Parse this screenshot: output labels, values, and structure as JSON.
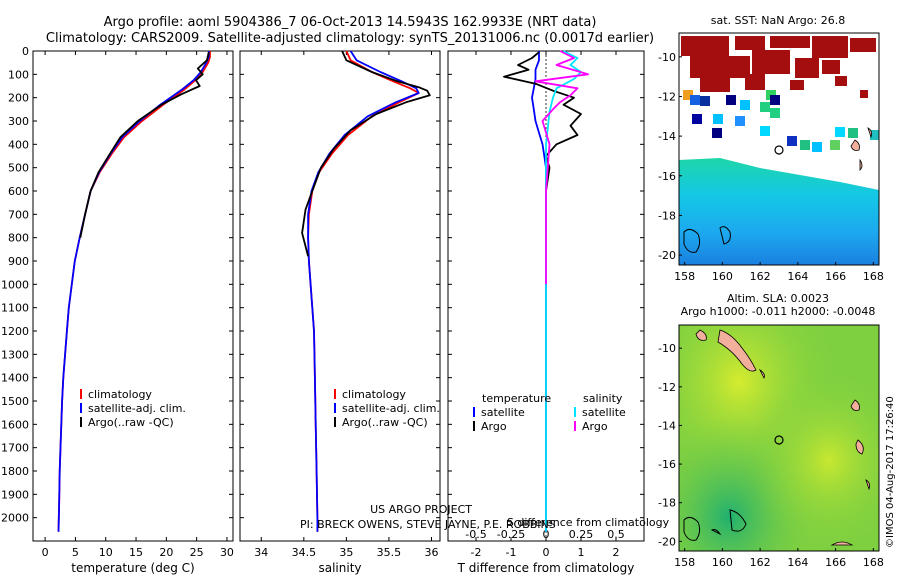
{
  "header": {
    "line1": "Argo profile: aoml 5904386_7 06-Oct-2013 14.5943S 162.9933E (NRT data)",
    "line2": "Climatology: CARS2009. Satellite-adjusted climatology: synTS_20131006.nc (0.0017d earlier)"
  },
  "credits": {
    "project": "US ARGO PROJECT",
    "pi": "PI: BRECK OWENS, STEVE JAYNE, P.E. ROBBINS",
    "stamp": "©IMOS 04-Aug-2017 17:26:40"
  },
  "colors": {
    "climatology": "#ff0000",
    "satellite": "#0000ff",
    "argo": "#000000",
    "argo_salinity": "#ff00ff",
    "satellite_salinity": "#00e5ff",
    "grid": "#000000"
  },
  "chart_data": [
    {
      "type": "line",
      "id": "temperature",
      "xlabel": "temperature (deg C)",
      "ylabel": "",
      "xlim": [
        -2,
        31
      ],
      "ylim": [
        2100,
        0
      ],
      "xticks": [
        "0",
        "5",
        "10",
        "15",
        "20",
        "25",
        "30"
      ],
      "xtick_values": [
        0,
        5,
        10,
        15,
        20,
        25,
        30
      ],
      "yticks": [
        "0",
        "100",
        "200",
        "300",
        "400",
        "500",
        "600",
        "700",
        "800",
        "900",
        "1000",
        "1100",
        "1200",
        "1300",
        "1400",
        "1500",
        "1600",
        "1700",
        "1800",
        "1900",
        "2000"
      ],
      "ytick_values": [
        0,
        100,
        200,
        300,
        400,
        500,
        600,
        700,
        800,
        900,
        1000,
        1100,
        1200,
        1300,
        1400,
        1500,
        1600,
        1700,
        1800,
        1900,
        2000
      ],
      "legend": [
        "climatology",
        "satellite-adj. clim.",
        "Argo(..raw -QC)"
      ],
      "series": [
        {
          "name": "climatology",
          "color": "#ff0000",
          "x": [
            27.2,
            27.2,
            26.9,
            26.0,
            24.8,
            23.0,
            19.5,
            16.0,
            13.0,
            11.0,
            9.0,
            7.5,
            6.6,
            5.7,
            4.9,
            4.4,
            3.9,
            3.6,
            3.3,
            3.0,
            2.8,
            2.6,
            2.4,
            2.3,
            2.2
          ],
          "y": [
            0,
            25,
            50,
            90,
            125,
            165,
            230,
            300,
            370,
            440,
            520,
            600,
            700,
            800,
            900,
            1000,
            1100,
            1200,
            1300,
            1400,
            1500,
            1650,
            1800,
            1950,
            2060
          ]
        },
        {
          "name": "satellite-adj. clim.",
          "color": "#0000ff",
          "x": [
            27.0,
            27.0,
            26.6,
            25.7,
            24.5,
            22.6,
            19.0,
            15.6,
            12.7,
            10.8,
            8.9,
            7.5,
            6.6,
            5.7,
            4.9,
            4.4,
            3.9,
            3.6,
            3.3,
            3.0,
            2.8,
            2.6,
            2.4,
            2.3,
            2.2
          ],
          "y": [
            0,
            25,
            50,
            90,
            125,
            165,
            230,
            300,
            370,
            440,
            520,
            600,
            700,
            800,
            900,
            1000,
            1100,
            1200,
            1300,
            1400,
            1500,
            1650,
            1800,
            1950,
            2060
          ]
        },
        {
          "name": "Argo(..raw -QC)",
          "color": "#000000",
          "x": [
            27.0,
            26.7,
            25.2,
            26.0,
            24.9,
            25.5,
            22.5,
            19.2,
            15.3,
            12.4,
            10.7,
            8.8,
            7.5,
            6.6,
            5.8
          ],
          "y": [
            5,
            40,
            75,
            100,
            125,
            150,
            185,
            230,
            300,
            370,
            440,
            520,
            600,
            700,
            800
          ]
        }
      ]
    },
    {
      "type": "line",
      "id": "salinity",
      "xlabel": "salinity",
      "ylabel": "",
      "xlim": [
        33.75,
        36.1
      ],
      "ylim": [
        2100,
        0
      ],
      "xticks": [
        "34",
        "34.5",
        "35",
        "35.5",
        "36"
      ],
      "xtick_values": [
        34,
        34.5,
        35,
        35.5,
        36
      ],
      "legend": [
        "climatology",
        "satellite-adj. clim.",
        "Argo(..raw -QC)"
      ],
      "series": [
        {
          "name": "climatology",
          "color": "#ff0000",
          "x": [
            35.0,
            35.05,
            35.3,
            35.55,
            35.75,
            35.85,
            35.62,
            35.3,
            35.02,
            34.83,
            34.68,
            34.6,
            34.56,
            34.55,
            34.56,
            34.58,
            34.6,
            34.62,
            34.63,
            34.64,
            34.65,
            34.66,
            34.66
          ],
          "y": [
            0,
            40,
            90,
            130,
            160,
            180,
            220,
            280,
            360,
            440,
            520,
            600,
            700,
            800,
            900,
            1000,
            1100,
            1200,
            1400,
            1600,
            1800,
            2000,
            2060
          ]
        },
        {
          "name": "satellite-adj. clim.",
          "color": "#0000ff",
          "x": [
            35.05,
            35.12,
            35.4,
            35.65,
            35.82,
            35.85,
            35.58,
            35.25,
            34.98,
            34.8,
            34.67,
            34.59,
            34.55,
            34.55,
            34.56,
            34.58,
            34.6,
            34.62,
            34.63,
            34.64,
            34.65,
            34.66,
            34.66
          ],
          "y": [
            0,
            40,
            90,
            130,
            160,
            180,
            220,
            280,
            360,
            440,
            520,
            600,
            700,
            800,
            900,
            1000,
            1100,
            1200,
            1400,
            1600,
            1800,
            2000,
            2060
          ]
        },
        {
          "name": "Argo(..raw -QC)",
          "color": "#000000",
          "x": [
            34.95,
            35.0,
            35.3,
            35.6,
            35.85,
            35.95,
            35.98,
            35.7,
            35.35,
            35.05,
            34.85,
            34.7,
            34.62,
            34.52,
            34.48,
            34.55
          ],
          "y": [
            0,
            40,
            90,
            130,
            155,
            170,
            190,
            220,
            270,
            340,
            420,
            500,
            580,
            680,
            780,
            880
          ]
        }
      ]
    },
    {
      "type": "line",
      "id": "difference",
      "xlabel": "T difference from climatology",
      "xlabel_top": "S difference from climatology",
      "xlim": [
        -2.8,
        2.8
      ],
      "ylim": [
        2100,
        0
      ],
      "xticks": [
        "-2",
        "-1",
        "0",
        "1",
        "2"
      ],
      "xtick_values": [
        -2,
        -1,
        0,
        1,
        2
      ],
      "xticks_top": [
        "-0.5",
        "-0.25",
        "0",
        "0.25",
        "0.5"
      ],
      "xtick_top_values": [
        -0.5,
        -0.25,
        0,
        0.25,
        0.5
      ],
      "legend_headers": [
        "temperature",
        "salinity"
      ],
      "legend": [
        "satellite",
        "Argo",
        "satellite",
        "Argo"
      ],
      "series": [
        {
          "name": "temperature satellite",
          "color": "#0000ff",
          "x": [
            -0.2,
            -0.2,
            -0.3,
            -0.3,
            -0.35,
            -0.4,
            -0.35,
            -0.3,
            -0.2,
            -0.1,
            -0.05,
            0,
            0,
            0,
            0,
            0,
            0,
            0
          ],
          "y": [
            0,
            40,
            80,
            120,
            160,
            200,
            250,
            300,
            350,
            400,
            450,
            500,
            600,
            800,
            1000,
            1400,
            1800,
            2060
          ]
        },
        {
          "name": "temperature Argo",
          "color": "#000000",
          "x": [
            -0.2,
            -0.4,
            -0.8,
            -0.5,
            -1.2,
            -0.3,
            0.2,
            0.8,
            0.5,
            1.0,
            0.7,
            0.9,
            0.3,
            0.0,
            0.1,
            0.0,
            0.0,
            0.0
          ],
          "y": [
            5,
            30,
            60,
            80,
            110,
            140,
            170,
            200,
            230,
            270,
            320,
            360,
            400,
            450,
            500,
            600,
            700,
            800
          ]
        },
        {
          "name": "salinity satellite",
          "color": "#00e5ff",
          "x": [
            0.5,
            0.9,
            0.7,
            1.0,
            0.8,
            0.3,
            0.2,
            0.1,
            0.05,
            0.0,
            0.0,
            0.0,
            0.0
          ],
          "y": [
            0,
            30,
            60,
            90,
            120,
            160,
            200,
            260,
            330,
            400,
            600,
            1000,
            2060
          ]
        },
        {
          "name": "salinity Argo",
          "color": "#ff00ff",
          "x": [
            0.4,
            0.8,
            0.3,
            1.2,
            -0.3,
            0.9,
            0.7,
            0.4,
            0.2,
            -0.1,
            0.1,
            0.0,
            0.0,
            0.0
          ],
          "y": [
            0,
            30,
            60,
            100,
            130,
            160,
            190,
            220,
            250,
            300,
            400,
            600,
            900,
            1000
          ]
        }
      ]
    },
    {
      "type": "heatmap",
      "id": "sst_map",
      "title": "sat. SST: NaN Argo: 26.8",
      "xticks": [
        "158",
        "160",
        "162",
        "164",
        "166",
        "168"
      ],
      "xtick_values": [
        158,
        160,
        162,
        164,
        166,
        168
      ],
      "yticks": [
        "-10",
        "-12",
        "-14",
        "-16",
        "-18",
        "-20"
      ],
      "ytick_values": [
        -10,
        -12,
        -14,
        -16,
        -18,
        -20
      ],
      "xlim": [
        157.7,
        168.3
      ],
      "ylim": [
        -20.5,
        -8.8
      ],
      "argo_position": [
        162.99,
        -14.59
      ]
    },
    {
      "type": "heatmap",
      "id": "sla_map",
      "title_line1": "Altim. SLA: 0.0023",
      "title_line2": "Argo h1000: -0.011 h2000: -0.0048",
      "xticks": [
        "158",
        "160",
        "162",
        "164",
        "166",
        "168"
      ],
      "xtick_values": [
        158,
        160,
        162,
        164,
        166,
        168
      ],
      "yticks": [
        "-10",
        "-12",
        "-14",
        "-16",
        "-18",
        "-20"
      ],
      "ytick_values": [
        -10,
        -12,
        -14,
        -16,
        -18,
        -20
      ],
      "xlim": [
        157.7,
        168.3
      ],
      "ylim": [
        -20.5,
        -8.8
      ],
      "argo_position": [
        162.99,
        -14.59
      ]
    }
  ]
}
